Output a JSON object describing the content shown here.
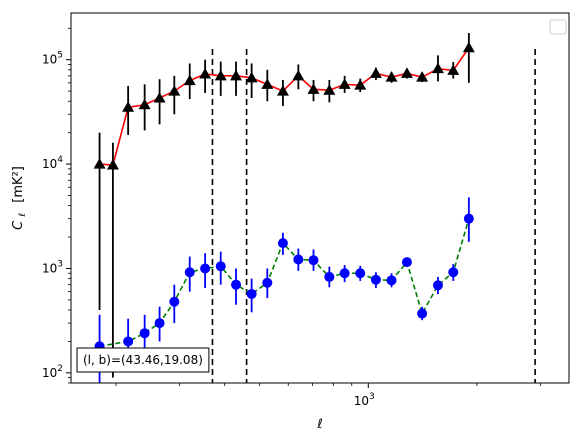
{
  "chart_data": {
    "type": "scatter",
    "xlabel": "ℓ",
    "ylabel": "C",
    "ylabel_sub": "ℓ",
    "ylabel_unit": "[mK²]",
    "xscale": "log",
    "yscale": "log",
    "xlim": [
      150,
      3600
    ],
    "ylim": [
      80,
      280000
    ],
    "x_ticks": [
      {
        "value": 1000,
        "label": "10",
        "exp": "3"
      }
    ],
    "y_ticks": [
      {
        "value": 100,
        "label": "10",
        "exp": "2"
      },
      {
        "value": 1000,
        "label": "10",
        "exp": "3"
      },
      {
        "value": 10000,
        "label": "10",
        "exp": "4"
      },
      {
        "value": 100000,
        "label": "10",
        "exp": "5"
      }
    ],
    "grid": false,
    "legend": "top-right",
    "vlines": [
      370,
      460,
      2900
    ],
    "annotation": {
      "text": "(l, b)=(43.46,19.08)",
      "position": "bottom-left"
    },
    "series": [
      {
        "marker": "triangle",
        "line_color": "#ff0000",
        "marker_color": "#000000",
        "line_style": "solid",
        "points": [
          {
            "x": 180,
            "y": 10000,
            "lo": 400,
            "hi": 20000
          },
          {
            "x": 196,
            "y": 9800,
            "lo": 90,
            "hi": 16000
          },
          {
            "x": 216,
            "y": 35000,
            "lo": 19000,
            "hi": 56000
          },
          {
            "x": 240,
            "y": 37000,
            "lo": 21000,
            "hi": 58000
          },
          {
            "x": 264,
            "y": 43000,
            "lo": 24000,
            "hi": 65000
          },
          {
            "x": 290,
            "y": 50000,
            "lo": 30000,
            "hi": 70000
          },
          {
            "x": 320,
            "y": 63000,
            "lo": 42000,
            "hi": 92000
          },
          {
            "x": 353,
            "y": 73000,
            "lo": 48000,
            "hi": 100000
          },
          {
            "x": 390,
            "y": 70000,
            "lo": 45000,
            "hi": 96000
          },
          {
            "x": 430,
            "y": 70000,
            "lo": 45000,
            "hi": 96000
          },
          {
            "x": 475,
            "y": 67000,
            "lo": 43000,
            "hi": 92000
          },
          {
            "x": 525,
            "y": 58000,
            "lo": 40000,
            "hi": 80000
          },
          {
            "x": 580,
            "y": 50000,
            "lo": 36000,
            "hi": 64000
          },
          {
            "x": 640,
            "y": 70000,
            "lo": 52000,
            "hi": 90000
          },
          {
            "x": 705,
            "y": 52000,
            "lo": 40000,
            "hi": 64000
          },
          {
            "x": 780,
            "y": 51000,
            "lo": 39000,
            "hi": 64000
          },
          {
            "x": 860,
            "y": 58000,
            "lo": 48000,
            "hi": 70000
          },
          {
            "x": 950,
            "y": 57000,
            "lo": 49000,
            "hi": 66000
          },
          {
            "x": 1050,
            "y": 74000,
            "lo": 64000,
            "hi": 84000
          },
          {
            "x": 1160,
            "y": 68000,
            "lo": 60000,
            "hi": 76000
          },
          {
            "x": 1280,
            "y": 74000,
            "lo": 66000,
            "hi": 82000
          },
          {
            "x": 1410,
            "y": 68000,
            "lo": 61000,
            "hi": 75000
          },
          {
            "x": 1560,
            "y": 82000,
            "lo": 62000,
            "hi": 110000
          },
          {
            "x": 1720,
            "y": 79000,
            "lo": 66000,
            "hi": 95000
          },
          {
            "x": 1900,
            "y": 130000,
            "lo": 60000,
            "hi": 180000
          }
        ]
      },
      {
        "marker": "circle",
        "line_color": "#008000",
        "marker_color": "#0000ff",
        "line_style": "dashed",
        "points": [
          {
            "x": 180,
            "y": 180,
            "lo": 80,
            "hi": 360
          },
          {
            "x": 216,
            "y": 200,
            "lo": 130,
            "hi": 330
          },
          {
            "x": 240,
            "y": 240,
            "lo": 160,
            "hi": 360
          },
          {
            "x": 264,
            "y": 300,
            "lo": 200,
            "hi": 430
          },
          {
            "x": 290,
            "y": 480,
            "lo": 300,
            "hi": 700
          },
          {
            "x": 320,
            "y": 920,
            "lo": 600,
            "hi": 1300
          },
          {
            "x": 353,
            "y": 1000,
            "lo": 650,
            "hi": 1400
          },
          {
            "x": 390,
            "y": 1050,
            "lo": 700,
            "hi": 1450
          },
          {
            "x": 430,
            "y": 700,
            "lo": 450,
            "hi": 1000
          },
          {
            "x": 475,
            "y": 570,
            "lo": 380,
            "hi": 800
          },
          {
            "x": 525,
            "y": 730,
            "lo": 520,
            "hi": 1000
          },
          {
            "x": 580,
            "y": 1750,
            "lo": 1350,
            "hi": 2200
          },
          {
            "x": 640,
            "y": 1220,
            "lo": 950,
            "hi": 1550
          },
          {
            "x": 705,
            "y": 1200,
            "lo": 950,
            "hi": 1520
          },
          {
            "x": 780,
            "y": 830,
            "lo": 660,
            "hi": 1040
          },
          {
            "x": 860,
            "y": 900,
            "lo": 740,
            "hi": 1080
          },
          {
            "x": 950,
            "y": 900,
            "lo": 760,
            "hi": 1060
          },
          {
            "x": 1050,
            "y": 780,
            "lo": 650,
            "hi": 920
          },
          {
            "x": 1160,
            "y": 770,
            "lo": 660,
            "hi": 900
          },
          {
            "x": 1280,
            "y": 1150,
            "lo": 1040,
            "hi": 1270
          },
          {
            "x": 1410,
            "y": 370,
            "lo": 320,
            "hi": 430
          },
          {
            "x": 1560,
            "y": 690,
            "lo": 570,
            "hi": 830
          },
          {
            "x": 1720,
            "y": 920,
            "lo": 760,
            "hi": 1100
          },
          {
            "x": 1900,
            "y": 3000,
            "lo": 1800,
            "hi": 4800
          }
        ]
      }
    ]
  }
}
